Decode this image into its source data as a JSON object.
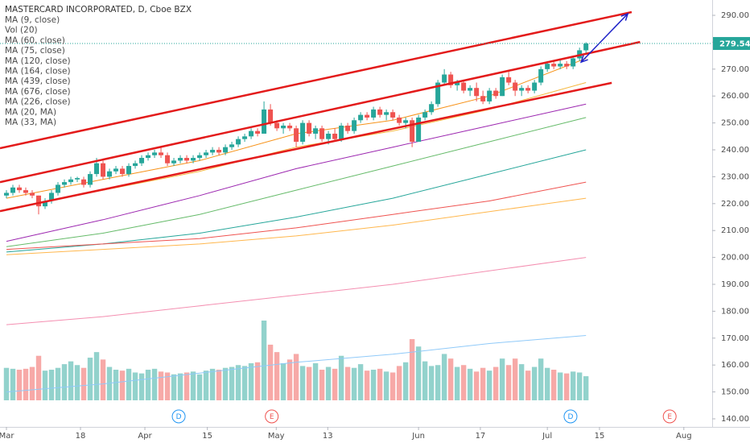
{
  "chart_data": {
    "type": "candlestick",
    "title": "MASTERCARD INCORPORATED, D, Cboe BZX",
    "indicators": [
      "MA (9, close)",
      "Vol (20)",
      "MA (60, close)",
      "MA (75, close)",
      "MA (120, close)",
      "MA (164, close)",
      "MA (439, close)",
      "MA (676, close)",
      "MA (226, close)",
      "MA (20, MA)",
      "MA (33, MA)"
    ],
    "up_color": "#26a69a",
    "down_color": "#ef5350",
    "xlim": [
      -1,
      109.6
    ],
    "ylim": [
      137,
      295.7
    ],
    "xticks": [
      {
        "value": 0,
        "label": "Mar"
      },
      {
        "value": 11.5,
        "label": "18"
      },
      {
        "value": 21.5,
        "label": "Apr"
      },
      {
        "value": 31.2,
        "label": "15"
      },
      {
        "value": 41.9,
        "label": "May"
      },
      {
        "value": 49.9,
        "label": "13"
      },
      {
        "value": 64,
        "label": "Jun"
      },
      {
        "value": 73.6,
        "label": "17"
      },
      {
        "value": 84,
        "label": "Jul"
      },
      {
        "value": 92.1,
        "label": "15"
      },
      {
        "value": 105.2,
        "label": "Aug"
      }
    ],
    "yticks": [
      {
        "value": 140,
        "label": "140.00"
      },
      {
        "value": 150,
        "label": "150.00"
      },
      {
        "value": 160,
        "label": "160.00"
      },
      {
        "value": 170,
        "label": "170.00"
      },
      {
        "value": 180,
        "label": "180.00"
      },
      {
        "value": 190,
        "label": "190.00"
      },
      {
        "value": 200,
        "label": "200.00"
      },
      {
        "value": 210,
        "label": "210.00"
      },
      {
        "value": 220,
        "label": "220.00"
      },
      {
        "value": 230,
        "label": "230.00"
      },
      {
        "value": 240,
        "label": "240.00"
      },
      {
        "value": 250,
        "label": "250.00"
      },
      {
        "value": 260,
        "label": "260.00"
      },
      {
        "value": 270,
        "label": "270.00"
      },
      {
        "value": 280,
        "label": "280.00"
      },
      {
        "value": 290,
        "label": "290.00"
      }
    ],
    "candles": [
      [
        223,
        225,
        222,
        224
      ],
      [
        224,
        227,
        223,
        226
      ],
      [
        226,
        227,
        224,
        225
      ],
      [
        225,
        226,
        223,
        224
      ],
      [
        224,
        225,
        222,
        223
      ],
      [
        223,
        223,
        216,
        219
      ],
      [
        219,
        222,
        218,
        221
      ],
      [
        221,
        225,
        220,
        224
      ],
      [
        224,
        228,
        223,
        227
      ],
      [
        227,
        229,
        226,
        228
      ],
      [
        228,
        230,
        227,
        229
      ],
      [
        229,
        230,
        228,
        229.5
      ],
      [
        229,
        230,
        226,
        227
      ],
      [
        227,
        232,
        226,
        231
      ],
      [
        231,
        237,
        230,
        235
      ],
      [
        235,
        236,
        229,
        230
      ],
      [
        230,
        233,
        229,
        232
      ],
      [
        232,
        234,
        231,
        233
      ],
      [
        233,
        234,
        230,
        231
      ],
      [
        231,
        235,
        230,
        234
      ],
      [
        234,
        236,
        233,
        235
      ],
      [
        235,
        238,
        234,
        237
      ],
      [
        237,
        239,
        236,
        238
      ],
      [
        238,
        240,
        237,
        239
      ],
      [
        239,
        241,
        237,
        238
      ],
      [
        238,
        239,
        234,
        235
      ],
      [
        235,
        237,
        234,
        236
      ],
      [
        236,
        238,
        235,
        237
      ],
      [
        237,
        238,
        235,
        236
      ],
      [
        236,
        238,
        235,
        237
      ],
      [
        237,
        239,
        236,
        238
      ],
      [
        238,
        240,
        237,
        239
      ],
      [
        239,
        241,
        238,
        240
      ],
      [
        240,
        241,
        238,
        239
      ],
      [
        239,
        242,
        238,
        241
      ],
      [
        241,
        243,
        240,
        242
      ],
      [
        242,
        245,
        241,
        244
      ],
      [
        244,
        246,
        243,
        245
      ],
      [
        245,
        248,
        244,
        247
      ],
      [
        247,
        248,
        245,
        246
      ],
      [
        246,
        258,
        246,
        255
      ],
      [
        255,
        257,
        249,
        250
      ],
      [
        250,
        251,
        247,
        248
      ],
      [
        248,
        250,
        246,
        249
      ],
      [
        249,
        250,
        247,
        248
      ],
      [
        248,
        249,
        241,
        243
      ],
      [
        243,
        251,
        242,
        250
      ],
      [
        250,
        251,
        245,
        246
      ],
      [
        246,
        249,
        244,
        248
      ],
      [
        248,
        249,
        243,
        244
      ],
      [
        244,
        247,
        242,
        246
      ],
      [
        246,
        248,
        243,
        244
      ],
      [
        244,
        250,
        243,
        249
      ],
      [
        249,
        250,
        246,
        247
      ],
      [
        247,
        252,
        246,
        251
      ],
      [
        251,
        254,
        250,
        253
      ],
      [
        253,
        254,
        251,
        252
      ],
      [
        252,
        256,
        251,
        255
      ],
      [
        255,
        256,
        252,
        253
      ],
      [
        253,
        255,
        251,
        254
      ],
      [
        254,
        255,
        251,
        252
      ],
      [
        252,
        253,
        249,
        250
      ],
      [
        250,
        252,
        248,
        251
      ],
      [
        251,
        252,
        241,
        243
      ],
      [
        243,
        253,
        243,
        252
      ],
      [
        252,
        255,
        251,
        254
      ],
      [
        254,
        258,
        253,
        257
      ],
      [
        257,
        266,
        256,
        265
      ],
      [
        265,
        270,
        264,
        268
      ],
      [
        268,
        269,
        263,
        264
      ],
      [
        264,
        266,
        262,
        265
      ],
      [
        265,
        266,
        261,
        262
      ],
      [
        262,
        264,
        260,
        263
      ],
      [
        263,
        265,
        258,
        260
      ],
      [
        260,
        262,
        257,
        258
      ],
      [
        258,
        263,
        257,
        262
      ],
      [
        262,
        263,
        259,
        260
      ],
      [
        260,
        268,
        260,
        267
      ],
      [
        267,
        269,
        264,
        265
      ],
      [
        265,
        266,
        260,
        262
      ],
      [
        262,
        264,
        260,
        263
      ],
      [
        263,
        264,
        261,
        262
      ],
      [
        262,
        266,
        261,
        265
      ],
      [
        265,
        271,
        264,
        270
      ],
      [
        270,
        273,
        269,
        272
      ],
      [
        272,
        273,
        270,
        271
      ],
      [
        271,
        274,
        270,
        272
      ],
      [
        272,
        273,
        270,
        271
      ],
      [
        271,
        275,
        270,
        274
      ],
      [
        274,
        278,
        273,
        277
      ],
      [
        277,
        280,
        276,
        279.54
      ]
    ],
    "volume": [
      3.5,
      3.4,
      3.3,
      3.4,
      3.6,
      4.8,
      3.2,
      3.3,
      3.5,
      3.9,
      4.2,
      3.8,
      3.5,
      4.6,
      5.2,
      4.4,
      3.6,
      3.3,
      3.2,
      3.4,
      3.0,
      2.9,
      3.3,
      3.4,
      3.1,
      3.0,
      2.8,
      2.9,
      3.0,
      3.1,
      2.8,
      3.2,
      3.4,
      3.3,
      3.5,
      3.6,
      3.8,
      3.7,
      4.0,
      4.1,
      8.6,
      6.0,
      5.2,
      4.0,
      4.4,
      5.0,
      3.7,
      3.6,
      4.0,
      3.3,
      3.6,
      3.4,
      4.8,
      3.6,
      3.5,
      3.9,
      3.2,
      3.3,
      3.4,
      3.1,
      3.0,
      3.7,
      4.1,
      6.6,
      5.8,
      4.2,
      3.7,
      3.8,
      5.0,
      4.5,
      3.6,
      3.8,
      3.4,
      3.1,
      3.5,
      3.2,
      3.6,
      4.5,
      3.8,
      4.5,
      3.9,
      3.2,
      3.6,
      4.5,
      3.5,
      3.3,
      3.0,
      2.9,
      3.1,
      3.0,
      2.6
    ],
    "series": [
      {
        "color": "#f7931a",
        "x": [
          0,
          15,
          30,
          45,
          60,
          75,
          90
        ],
        "values": [
          222,
          229,
          236,
          246,
          251,
          260,
          274
        ]
      },
      {
        "color": "#f5b942",
        "x": [
          0,
          15,
          30,
          45,
          60,
          75,
          90
        ],
        "values": [
          218,
          225,
          232,
          241,
          247,
          255,
          265
        ]
      },
      {
        "color": "#9c27b0",
        "x": [
          0,
          15,
          30,
          45,
          60,
          75,
          90
        ],
        "values": [
          206,
          214,
          223,
          233,
          241,
          249,
          257
        ]
      },
      {
        "color": "#66bb6a",
        "x": [
          0,
          15,
          30,
          45,
          60,
          75,
          90
        ],
        "values": [
          204,
          209,
          216,
          225,
          234,
          243,
          252
        ]
      },
      {
        "color": "#26a69a",
        "x": [
          0,
          15,
          30,
          45,
          60,
          75,
          90
        ],
        "values": [
          202,
          205,
          209,
          215,
          222,
          231,
          240
        ]
      },
      {
        "color": "#ef5350",
        "x": [
          0,
          15,
          30,
          45,
          60,
          75,
          90
        ],
        "values": [
          203,
          205,
          207,
          211,
          216,
          221,
          228
        ]
      },
      {
        "color": "#ffb74d",
        "x": [
          0,
          15,
          30,
          45,
          60,
          75,
          90
        ],
        "values": [
          201,
          203,
          205,
          208,
          212,
          217,
          222
        ]
      },
      {
        "color": "#f48fb1",
        "x": [
          0,
          15,
          30,
          45,
          60,
          75,
          90
        ],
        "values": [
          175,
          178,
          182,
          186,
          190,
          195,
          200
        ]
      },
      {
        "color": "#90caf9",
        "x": [
          0,
          15,
          30,
          45,
          60,
          75,
          90
        ],
        "values": [
          150,
          153,
          157,
          161,
          164,
          168,
          171
        ]
      }
    ],
    "trendlines": [
      {
        "color": "#e31b1b",
        "x": [
          -1,
          97.1
        ],
        "values": [
          240.6,
          291.2
        ]
      },
      {
        "color": "#e31b1b",
        "x": [
          -1,
          98.4
        ],
        "values": [
          228,
          280.1
        ]
      },
      {
        "color": "#e31b1b",
        "x": [
          -1,
          94
        ],
        "values": [
          217.2,
          264.9
        ]
      }
    ],
    "arrow": {
      "color": "#1e22c8",
      "x": [
        89.25,
        96.5
      ],
      "values": [
        272.6,
        290.6
      ]
    },
    "events": [
      {
        "x": 26.75,
        "label": "D",
        "color": "#2196f3"
      },
      {
        "x": 41.2,
        "label": "E",
        "color": "#ef5350"
      },
      {
        "x": 87.6,
        "label": "D",
        "color": "#2196f3"
      },
      {
        "x": 103,
        "label": "E",
        "color": "#ef5350"
      }
    ]
  }
}
